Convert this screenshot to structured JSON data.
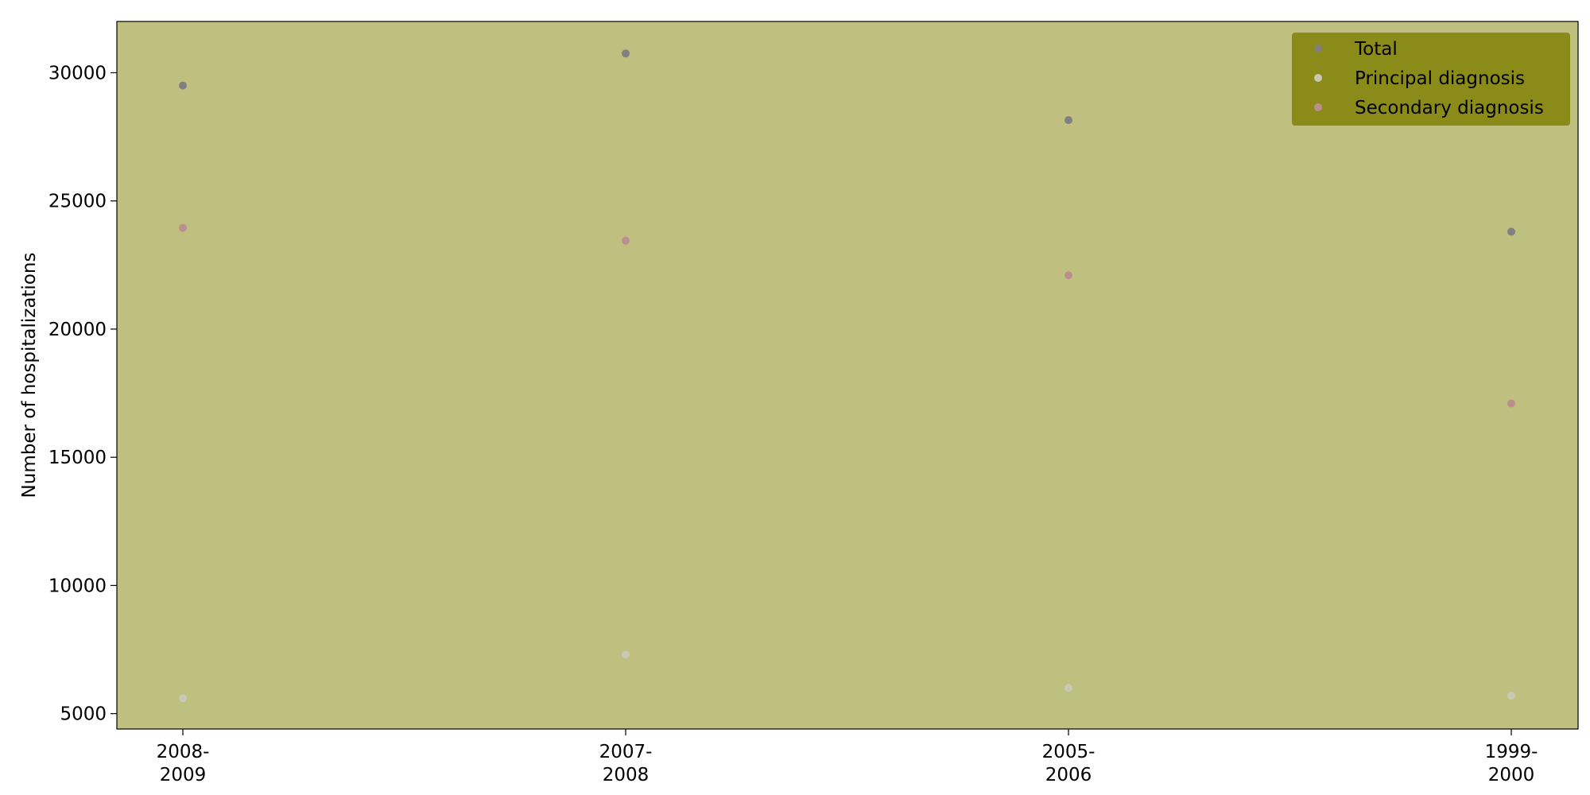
{
  "chart_data": {
    "type": "scatter",
    "categories": [
      [
        "2008-",
        "2009"
      ],
      [
        "2007-",
        "2008"
      ],
      [
        "2005-",
        "2006"
      ],
      [
        "1999-",
        "2000"
      ]
    ],
    "series": [
      {
        "name": "Total",
        "color": "#808080",
        "values": [
          29500,
          30750,
          28150,
          23800
        ]
      },
      {
        "name": "Principal diagnosis",
        "color": "#c8c8b4",
        "values": [
          5600,
          7300,
          6000,
          5700
        ]
      },
      {
        "name": "Secondary diagnosis",
        "color": "#bc8f8f",
        "values": [
          23950,
          23450,
          22100,
          17100
        ]
      }
    ],
    "ylabel": "Number of hospitalizations",
    "ylim": [
      4400,
      32000
    ],
    "yticks": [
      5000,
      10000,
      15000,
      20000,
      25000,
      30000
    ],
    "grid": false,
    "legend_position": "top-right",
    "plot_background": "#bfbf80",
    "legend_background": "#8b8b1a"
  }
}
